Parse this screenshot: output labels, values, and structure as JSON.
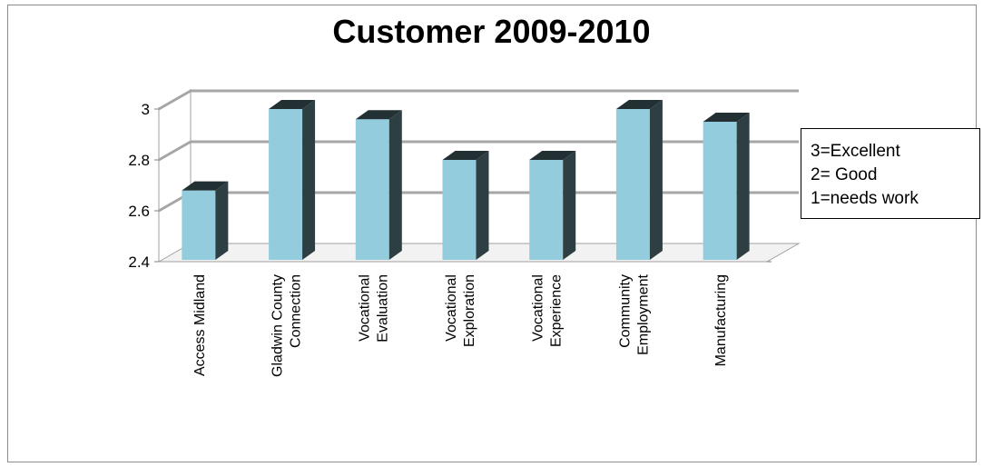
{
  "chart_data": {
    "type": "bar",
    "title": "Customer 2009-2010",
    "categories": [
      [
        "Access Midland"
      ],
      [
        "Gladwin County",
        "Connection"
      ],
      [
        "Vocational",
        "Evaluation"
      ],
      [
        "Vocational",
        "Exploration"
      ],
      [
        "Vocational",
        "Experience"
      ],
      [
        "Community",
        "Employment"
      ],
      [
        "Manufacturing"
      ]
    ],
    "values": [
      2.68,
      3.0,
      2.96,
      2.8,
      2.8,
      3.0,
      2.95
    ],
    "ylim": [
      2.4,
      3.0
    ],
    "yticks": [
      "2.4",
      "2.6",
      "2.8",
      "3"
    ],
    "grid": true,
    "three_d": true,
    "bar_color": "#93cddd",
    "bar_side_color": "#2e3f44",
    "bar_top_color": "#233033",
    "legend_placement": "right",
    "legend": [
      "3=Excellent",
      "2= Good",
      "1=needs work"
    ]
  }
}
